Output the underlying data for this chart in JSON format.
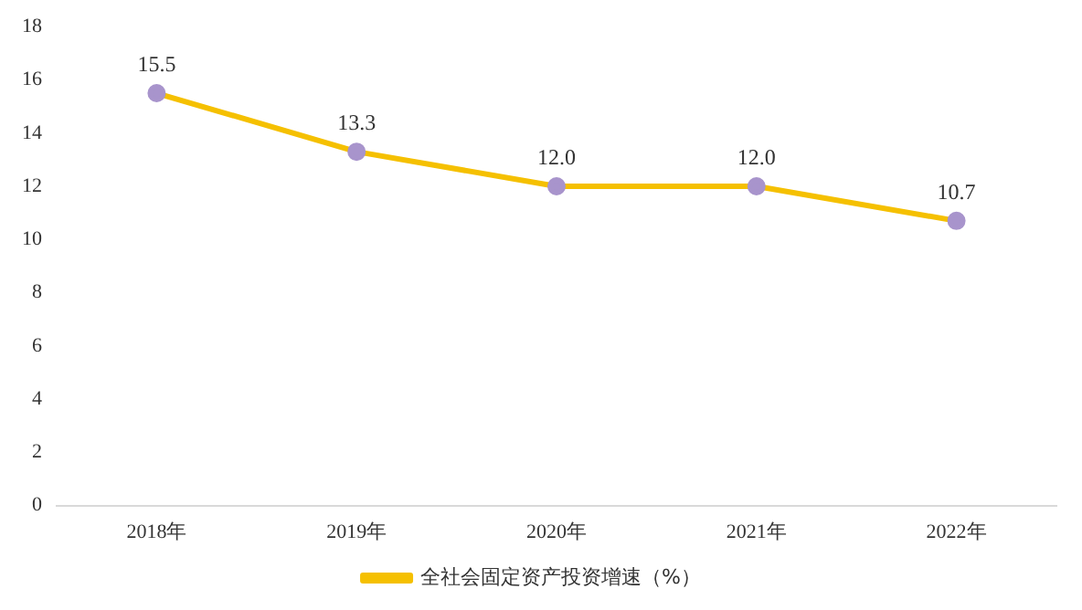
{
  "chart_data": {
    "type": "line",
    "categories": [
      "2018年",
      "2019年",
      "2020年",
      "2021年",
      "2022年"
    ],
    "series": [
      {
        "name": "全社会固定资产投资增速（%）",
        "color": "#f5c000",
        "values": [
          15.5,
          13.3,
          12.0,
          12.0,
          10.7
        ],
        "value_labels": [
          "15.5",
          "13.3",
          "12.0",
          "12.0",
          "10.7"
        ]
      }
    ],
    "ylim": [
      0,
      18
    ],
    "yticks": [
      0,
      2,
      4,
      6,
      8,
      10,
      12,
      14,
      16,
      18
    ],
    "grid": false,
    "legend": "bottom",
    "marker": "circle",
    "line_style": "solid"
  }
}
